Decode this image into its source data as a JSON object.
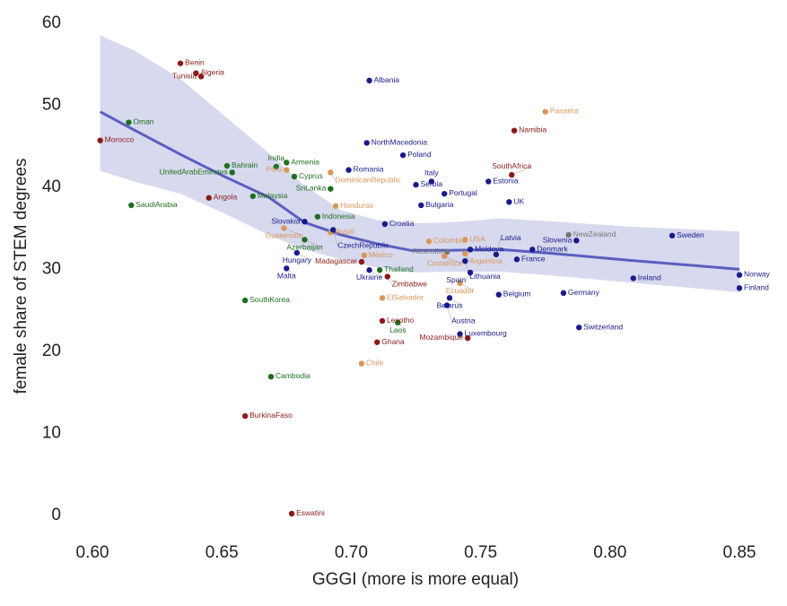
{
  "chart_data": {
    "type": "scatter",
    "xlabel": "GGGI (more is more equal)",
    "ylabel": "female share of STEM degrees",
    "xlim": [
      0.585,
      0.855
    ],
    "ylim": [
      -1,
      61
    ],
    "xticks": [
      "0.60",
      "0.65",
      "0.70",
      "0.75",
      "0.80",
      "0.85"
    ],
    "yticks": [
      "0",
      "10",
      "20",
      "30",
      "40",
      "50",
      "60"
    ],
    "grid": false,
    "colors": {
      "Africa": "#8b1a1a",
      "Asia": "#1f6e1f",
      "Europe": "#1a1a8c",
      "Americas": "#d9965a",
      "Oceania": "#777777",
      "trend": "#5a5fbf",
      "band": "#d3d5ec"
    },
    "points": [
      {
        "name": "Benin",
        "x": 0.634,
        "y": 54.9,
        "g": "Africa"
      },
      {
        "name": "Algeria",
        "x": 0.64,
        "y": 53.7,
        "g": "Africa"
      },
      {
        "name": "Tunisia",
        "x": 0.642,
        "y": 53.3,
        "g": "Africa"
      },
      {
        "name": "Morocco",
        "x": 0.603,
        "y": 45.5,
        "g": "Africa"
      },
      {
        "name": "Oman",
        "x": 0.614,
        "y": 47.7,
        "g": "Asia"
      },
      {
        "name": "SaudiArabia",
        "x": 0.615,
        "y": 37.6,
        "g": "Asia"
      },
      {
        "name": "Angola",
        "x": 0.645,
        "y": 38.5,
        "g": "Africa"
      },
      {
        "name": "Bahrain",
        "x": 0.652,
        "y": 42.4,
        "g": "Asia"
      },
      {
        "name": "UnitedArabEmirates",
        "x": 0.654,
        "y": 41.6,
        "g": "Asia"
      },
      {
        "name": "Armenia",
        "x": 0.675,
        "y": 42.8,
        "g": "Asia"
      },
      {
        "name": "India",
        "x": 0.671,
        "y": 42.3,
        "g": "Asia"
      },
      {
        "name": "Peru",
        "x": 0.675,
        "y": 41.9,
        "g": "Americas"
      },
      {
        "name": "Cyprus",
        "x": 0.678,
        "y": 41.1,
        "g": "Asia"
      },
      {
        "name": "Malaysia",
        "x": 0.662,
        "y": 38.7,
        "g": "Asia"
      },
      {
        "name": "Romania",
        "x": 0.699,
        "y": 41.9,
        "g": "Europe"
      },
      {
        "name": "DominicanRepublic",
        "x": 0.692,
        "y": 41.6,
        "g": "Americas"
      },
      {
        "name": "SriLanka",
        "x": 0.692,
        "y": 39.6,
        "g": "Asia"
      },
      {
        "name": "Honduras",
        "x": 0.694,
        "y": 37.5,
        "g": "Americas"
      },
      {
        "name": "Indonesia",
        "x": 0.687,
        "y": 36.2,
        "g": "Asia"
      },
      {
        "name": "Slovakia",
        "x": 0.682,
        "y": 35.6,
        "g": "Europe"
      },
      {
        "name": "Guatemala",
        "x": 0.674,
        "y": 34.8,
        "g": "Americas"
      },
      {
        "name": "Brazil",
        "x": 0.692,
        "y": 34.3,
        "g": "Americas"
      },
      {
        "name": "CzechRepublic",
        "x": 0.693,
        "y": 34.6,
        "g": "Europe"
      },
      {
        "name": "Azerbaijan",
        "x": 0.682,
        "y": 33.4,
        "g": "Asia"
      },
      {
        "name": "Hungary",
        "x": 0.679,
        "y": 31.8,
        "g": "Europe"
      },
      {
        "name": "Malta",
        "x": 0.675,
        "y": 29.9,
        "g": "Europe"
      },
      {
        "name": "Mexico",
        "x": 0.705,
        "y": 31.5,
        "g": "Americas"
      },
      {
        "name": "Madagascar",
        "x": 0.704,
        "y": 30.7,
        "g": "Africa"
      },
      {
        "name": "Thailand",
        "x": 0.711,
        "y": 29.7,
        "g": "Asia"
      },
      {
        "name": "Ukraine",
        "x": 0.707,
        "y": 29.7,
        "g": "Europe"
      },
      {
        "name": "Zimbabwe",
        "x": 0.714,
        "y": 28.9,
        "g": "Africa"
      },
      {
        "name": "ElSalvador",
        "x": 0.712,
        "y": 26.3,
        "g": "Americas"
      },
      {
        "name": "Lesotho",
        "x": 0.712,
        "y": 23.5,
        "g": "Africa"
      },
      {
        "name": "Laos",
        "x": 0.718,
        "y": 23.3,
        "g": "Asia"
      },
      {
        "name": "Ghana",
        "x": 0.71,
        "y": 20.9,
        "g": "Africa"
      },
      {
        "name": "SouthKorea",
        "x": 0.659,
        "y": 26.0,
        "g": "Asia"
      },
      {
        "name": "Cambodia",
        "x": 0.669,
        "y": 16.7,
        "g": "Asia"
      },
      {
        "name": "BurkinaFaso",
        "x": 0.659,
        "y": 11.9,
        "g": "Africa"
      },
      {
        "name": "Eswatini",
        "x": 0.677,
        "y": 0.0,
        "g": "Africa"
      },
      {
        "name": "Chile",
        "x": 0.704,
        "y": 18.3,
        "g": "Americas"
      },
      {
        "name": "Albania",
        "x": 0.707,
        "y": 52.8,
        "g": "Europe"
      },
      {
        "name": "NorthMacedonia",
        "x": 0.706,
        "y": 45.2,
        "g": "Europe"
      },
      {
        "name": "Poland",
        "x": 0.72,
        "y": 43.7,
        "g": "Europe"
      },
      {
        "name": "Serbia",
        "x": 0.725,
        "y": 40.1,
        "g": "Europe"
      },
      {
        "name": "Italy",
        "x": 0.731,
        "y": 40.5,
        "g": "Europe"
      },
      {
        "name": "Portugal",
        "x": 0.736,
        "y": 39.0,
        "g": "Europe"
      },
      {
        "name": "Bulgaria",
        "x": 0.727,
        "y": 37.6,
        "g": "Europe"
      },
      {
        "name": "Estonia",
        "x": 0.753,
        "y": 40.5,
        "g": "Europe"
      },
      {
        "name": "UK",
        "x": 0.761,
        "y": 38.0,
        "g": "Europe"
      },
      {
        "name": "Croatia",
        "x": 0.713,
        "y": 35.3,
        "g": "Europe"
      },
      {
        "name": "Colombia",
        "x": 0.73,
        "y": 33.2,
        "g": "Americas"
      },
      {
        "name": "USA",
        "x": 0.744,
        "y": 33.4,
        "g": "Americas"
      },
      {
        "name": "Moldova",
        "x": 0.746,
        "y": 32.2,
        "g": "Europe"
      },
      {
        "name": "Australia",
        "x": 0.737,
        "y": 31.9,
        "g": "Oceania"
      },
      {
        "name": "CostaRica",
        "x": 0.736,
        "y": 31.4,
        "g": "Americas"
      },
      {
        "name": "Argentina",
        "x": 0.744,
        "y": 31.7,
        "g": "Americas"
      },
      {
        "name": "Lithuania",
        "x": 0.744,
        "y": 30.8,
        "g": "Europe"
      },
      {
        "name": "Latvia",
        "x": 0.756,
        "y": 31.6,
        "g": "Europe"
      },
      {
        "name": "France",
        "x": 0.764,
        "y": 31.0,
        "g": "Europe"
      },
      {
        "name": "Denmark",
        "x": 0.77,
        "y": 32.2,
        "g": "Europe"
      },
      {
        "name": "Spain",
        "x": 0.746,
        "y": 29.4,
        "g": "Europe"
      },
      {
        "name": "Ecuador",
        "x": 0.742,
        "y": 28.1,
        "g": "Americas"
      },
      {
        "name": "Belarus",
        "x": 0.738,
        "y": 26.3,
        "g": "Europe"
      },
      {
        "name": "Austria",
        "x": 0.737,
        "y": 25.4,
        "g": "Europe"
      },
      {
        "name": "Belgium",
        "x": 0.757,
        "y": 26.7,
        "g": "Europe"
      },
      {
        "name": "Luxembourg",
        "x": 0.742,
        "y": 21.9,
        "g": "Europe"
      },
      {
        "name": "Mozambique",
        "x": 0.745,
        "y": 21.4,
        "g": "Africa"
      },
      {
        "name": "NewZealand",
        "x": 0.784,
        "y": 34.0,
        "g": "Oceania"
      },
      {
        "name": "Slovenia",
        "x": 0.787,
        "y": 33.3,
        "g": "Europe"
      },
      {
        "name": "Germany",
        "x": 0.782,
        "y": 26.9,
        "g": "Europe"
      },
      {
        "name": "Switzerland",
        "x": 0.788,
        "y": 22.7,
        "g": "Europe"
      },
      {
        "name": "Panama",
        "x": 0.775,
        "y": 49.0,
        "g": "Americas"
      },
      {
        "name": "Namibia",
        "x": 0.763,
        "y": 46.7,
        "g": "Africa"
      },
      {
        "name": "SouthAfrica",
        "x": 0.762,
        "y": 41.3,
        "g": "Africa"
      },
      {
        "name": "Sweden",
        "x": 0.824,
        "y": 33.9,
        "g": "Europe"
      },
      {
        "name": "Ireland",
        "x": 0.809,
        "y": 28.7,
        "g": "Europe"
      },
      {
        "name": "Norway",
        "x": 0.85,
        "y": 29.1,
        "g": "Europe"
      },
      {
        "name": "Finland",
        "x": 0.85,
        "y": 27.5,
        "g": "Europe"
      }
    ],
    "trend": {
      "x": [
        0.603,
        0.616,
        0.634,
        0.651,
        0.668,
        0.682,
        0.696,
        0.71,
        0.723,
        0.738,
        0.758,
        0.779,
        0.807,
        0.85
      ],
      "y": [
        49.0,
        46.8,
        43.8,
        41.1,
        38.6,
        35.5,
        34.0,
        32.9,
        32.1,
        32.1,
        32.2,
        31.7,
        30.9,
        29.8
      ],
      "upper": [
        58.3,
        56.5,
        53.0,
        48.5,
        44.0,
        40.0,
        37.0,
        35.8,
        35.4,
        35.5,
        36.0,
        35.6,
        35.0,
        34.4
      ],
      "lower": [
        41.8,
        40.5,
        39.0,
        36.6,
        34.0,
        32.2,
        31.0,
        30.0,
        29.4,
        29.5,
        29.5,
        29.0,
        28.2,
        27.0
      ]
    }
  }
}
